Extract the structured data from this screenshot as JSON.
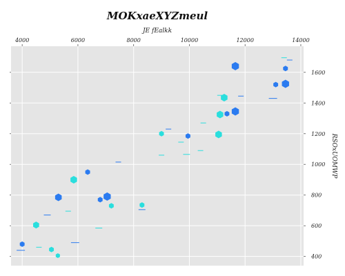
{
  "chart_data": {
    "type": "scatter",
    "title": "MOKxaeXYZmeul",
    "xlabel": "JE  fEalkk",
    "ylabel": "RSOxUOMWP",
    "x_axis_position": "top",
    "y_axis_position": "right",
    "xlim": [
      3600,
      14100
    ],
    "ylim": [
      340,
      1770
    ],
    "xticks": [
      4000,
      6000,
      8000,
      10000,
      12000,
      14000
    ],
    "yticks": [
      400,
      600,
      800,
      1000,
      1200,
      1400,
      1600
    ],
    "grid": true,
    "legend": "none",
    "colors": {
      "background": "#e5e5e5",
      "grid": "#ffffff",
      "blue": "#2b7bf0",
      "cyan": "#2adedd"
    },
    "markers": [
      {
        "x": 4000,
        "y": 480,
        "color": "blue",
        "shape": "hexagon",
        "size": 4
      },
      {
        "x": 4500,
        "y": 605,
        "color": "cyan",
        "shape": "hexagon",
        "size": 5
      },
      {
        "x": 5050,
        "y": 445,
        "color": "cyan",
        "shape": "hexagon",
        "size": 4
      },
      {
        "x": 5280,
        "y": 405,
        "color": "cyan",
        "shape": "hexagon",
        "size": 3.5
      },
      {
        "x": 5300,
        "y": 785,
        "color": "blue",
        "shape": "hexagon",
        "size": 5.5
      },
      {
        "x": 5850,
        "y": 900,
        "color": "cyan",
        "shape": "hexagon",
        "size": 5.5
      },
      {
        "x": 6350,
        "y": 950,
        "color": "blue",
        "shape": "hexagon",
        "size": 4
      },
      {
        "x": 6800,
        "y": 770,
        "color": "blue",
        "shape": "hexagon",
        "size": 4
      },
      {
        "x": 7050,
        "y": 790,
        "color": "blue",
        "shape": "hexagon",
        "size": 6
      },
      {
        "x": 7200,
        "y": 730,
        "color": "cyan",
        "shape": "hexagon",
        "size": 4
      },
      {
        "x": 8300,
        "y": 735,
        "color": "cyan",
        "shape": "hexagon",
        "size": 4
      },
      {
        "x": 9000,
        "y": 1200,
        "color": "cyan",
        "shape": "hexagon",
        "size": 4
      },
      {
        "x": 9950,
        "y": 1185,
        "color": "blue",
        "shape": "hexagon",
        "size": 4
      },
      {
        "x": 11050,
        "y": 1195,
        "color": "cyan",
        "shape": "hexagon",
        "size": 5.5
      },
      {
        "x": 11100,
        "y": 1325,
        "color": "cyan",
        "shape": "hexagon",
        "size": 5.5
      },
      {
        "x": 11250,
        "y": 1435,
        "color": "cyan",
        "shape": "hexagon",
        "size": 5.5
      },
      {
        "x": 11350,
        "y": 1330,
        "color": "blue",
        "shape": "hexagon",
        "size": 4
      },
      {
        "x": 11650,
        "y": 1345,
        "color": "blue",
        "shape": "hexagon",
        "size": 6
      },
      {
        "x": 11650,
        "y": 1640,
        "color": "blue",
        "shape": "hexagon",
        "size": 6
      },
      {
        "x": 13100,
        "y": 1520,
        "color": "blue",
        "shape": "hexagon",
        "size": 4
      },
      {
        "x": 13450,
        "y": 1625,
        "color": "blue",
        "shape": "hexagon",
        "size": 4
      },
      {
        "x": 13450,
        "y": 1525,
        "color": "blue",
        "shape": "hexagon",
        "size": 6
      },
      {
        "x": 3950,
        "y": 440,
        "color": "blue",
        "shape": "hline",
        "size": 6
      },
      {
        "x": 4600,
        "y": 460,
        "color": "cyan",
        "shape": "hline",
        "size": 4
      },
      {
        "x": 5900,
        "y": 490,
        "color": "blue",
        "shape": "hline",
        "size": 6
      },
      {
        "x": 6750,
        "y": 585,
        "color": "cyan",
        "shape": "hline",
        "size": 5
      },
      {
        "x": 4900,
        "y": 670,
        "color": "blue",
        "shape": "hline",
        "size": 5
      },
      {
        "x": 5650,
        "y": 695,
        "color": "cyan",
        "shape": "hline",
        "size": 4
      },
      {
        "x": 8300,
        "y": 705,
        "color": "blue",
        "shape": "hline",
        "size": 5
      },
      {
        "x": 7450,
        "y": 1015,
        "color": "blue",
        "shape": "hline",
        "size": 4
      },
      {
        "x": 9000,
        "y": 1060,
        "color": "cyan",
        "shape": "hline",
        "size": 4
      },
      {
        "x": 9900,
        "y": 1065,
        "color": "cyan",
        "shape": "hline",
        "size": 5
      },
      {
        "x": 10400,
        "y": 1090,
        "color": "cyan",
        "shape": "hline",
        "size": 4
      },
      {
        "x": 9700,
        "y": 1145,
        "color": "cyan",
        "shape": "hline",
        "size": 4
      },
      {
        "x": 9250,
        "y": 1230,
        "color": "blue",
        "shape": "hline",
        "size": 4
      },
      {
        "x": 10500,
        "y": 1270,
        "color": "cyan",
        "shape": "hline",
        "size": 4
      },
      {
        "x": 13000,
        "y": 1430,
        "color": "blue",
        "shape": "hline",
        "size": 6
      },
      {
        "x": 11850,
        "y": 1445,
        "color": "blue",
        "shape": "hline",
        "size": 4
      },
      {
        "x": 11100,
        "y": 1450,
        "color": "cyan",
        "shape": "hline",
        "size": 4
      },
      {
        "x": 13600,
        "y": 1680,
        "color": "blue",
        "shape": "hline",
        "size": 4
      },
      {
        "x": 13400,
        "y": 1695,
        "color": "cyan",
        "shape": "hline",
        "size": 4
      }
    ]
  }
}
